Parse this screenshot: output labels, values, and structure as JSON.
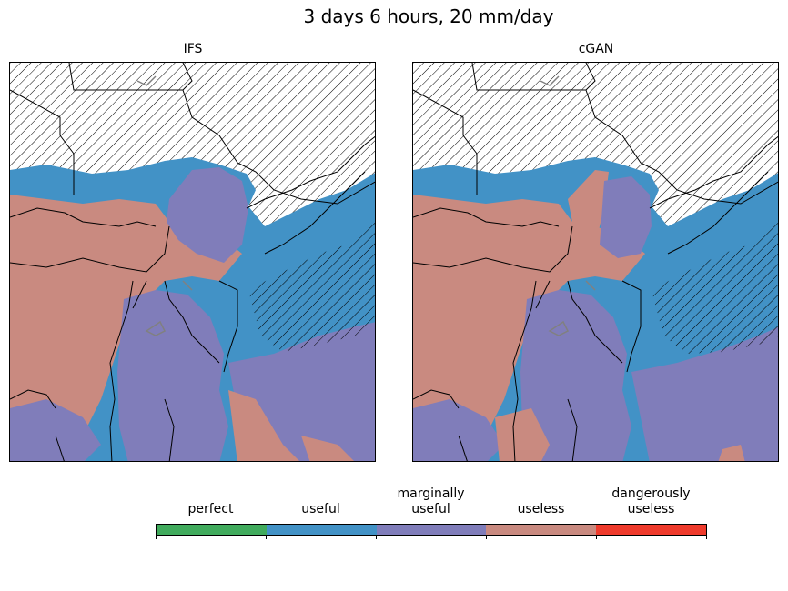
{
  "title": "3 days 6 hours, 20 mm/day",
  "panels": [
    {
      "title": "IFS"
    },
    {
      "title": "cGAN"
    }
  ],
  "colorbar": {
    "categories": [
      {
        "label": "perfect",
        "color": "#41ab5d"
      },
      {
        "label": "useful",
        "color": "#4292c6"
      },
      {
        "label": "marginally\nuseful",
        "color": "#807dba"
      },
      {
        "label": "useless",
        "color": "#c98a80"
      },
      {
        "label": "dangerously\nuseless",
        "color": "#ef3b2c"
      }
    ]
  },
  "colors": {
    "perfect": "#41ab5d",
    "useful": "#4292c6",
    "marginally_useful": "#807dba",
    "useless": "#c98a80",
    "dangerously_useless": "#ef3b2c",
    "no_data_hatch": "#ffffff"
  }
}
